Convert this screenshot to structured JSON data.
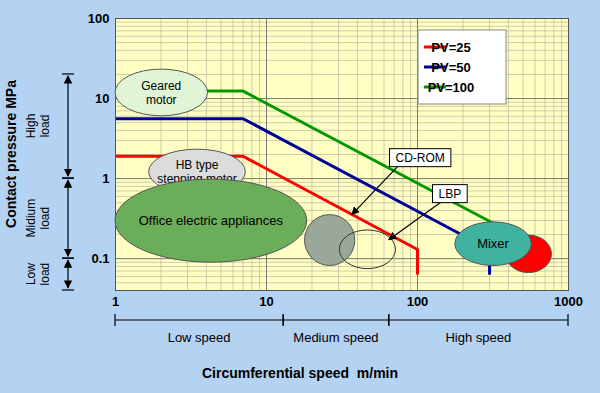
{
  "chart_data": {
    "type": "line",
    "xlabel": "Circumferential speed  m/min",
    "ylabel": "Contact pressure MPa",
    "log": true,
    "grid": true,
    "legend": "top-right",
    "xlim": [
      1,
      1000
    ],
    "xticks": [
      1,
      10,
      100,
      1000
    ],
    "ylim": [
      0.04,
      100
    ],
    "yticks": [
      0.1,
      1,
      10,
      100
    ],
    "series": [
      {
        "name": "PV=25",
        "color": "#ff0000",
        "x": [
          1,
          7,
          100,
          100
        ],
        "values": [
          1.9,
          1.9,
          0.13,
          0.065
        ]
      },
      {
        "name": "PV=50",
        "color": "#000099",
        "x": [
          1,
          7,
          300,
          300
        ],
        "values": [
          5.6,
          5.6,
          0.13,
          0.065
        ]
      },
      {
        "name": "PV=100",
        "color": "#009900",
        "x": [
          1,
          7,
          400
        ],
        "values": [
          12.4,
          12.4,
          0.22
        ]
      }
    ],
    "regions": [
      {
        "text": [
          "Geared",
          "motor"
        ],
        "x": [
          1,
          4.1
        ],
        "y": [
          6,
          23
        ],
        "color": "#dff5d6"
      },
      {
        "text": [
          "HB type",
          "stepping motor"
        ],
        "x": [
          1.67,
          7.3
        ],
        "y": [
          0.63,
          2.3
        ],
        "color": "#dcdcdc"
      },
      {
        "text": [
          "Office electric appliances"
        ],
        "x": [
          1,
          18.6
        ],
        "y": [
          0.089,
          0.97
        ],
        "color": "#6aae5a"
      },
      {
        "x": [
          18,
          38.7
        ],
        "y": [
          0.081,
          0.35
        ],
        "color": "#9aa89a"
      },
      {
        "x": [
          30.6,
          72
        ],
        "y": [
          0.074,
          0.225
        ]
      },
      {
        "x": [
          386,
          777
        ],
        "y": [
          0.066,
          0.194
        ],
        "color": "#ff0000"
      },
      {
        "text": [
          "Mixer"
        ],
        "x": [
          178,
          571
        ],
        "y": [
          0.081,
          0.284
        ],
        "color": "#3fb39f"
      }
    ],
    "callouts": [
      {
        "text": "CD-ROM",
        "x": 105,
        "y": 1.8,
        "target_x": 37,
        "target_y": 0.35
      },
      {
        "text": "LBP",
        "x": 165,
        "y": 0.64,
        "target_x": 65,
        "target_y": 0.17
      }
    ],
    "speed_ranges": [
      {
        "label": "Low speed",
        "range": [
          1,
          13
        ]
      },
      {
        "label": "Medium speed",
        "range": [
          13,
          65
        ]
      },
      {
        "label": "High speed",
        "range": [
          65,
          1000
        ]
      }
    ],
    "load_ranges": [
      {
        "label": "High load",
        "range": [
          1,
          20
        ]
      },
      {
        "label": "Midium load",
        "range": [
          0.1,
          1
        ]
      },
      {
        "label": "Low load",
        "range": [
          0.04,
          0.1
        ]
      }
    ]
  }
}
